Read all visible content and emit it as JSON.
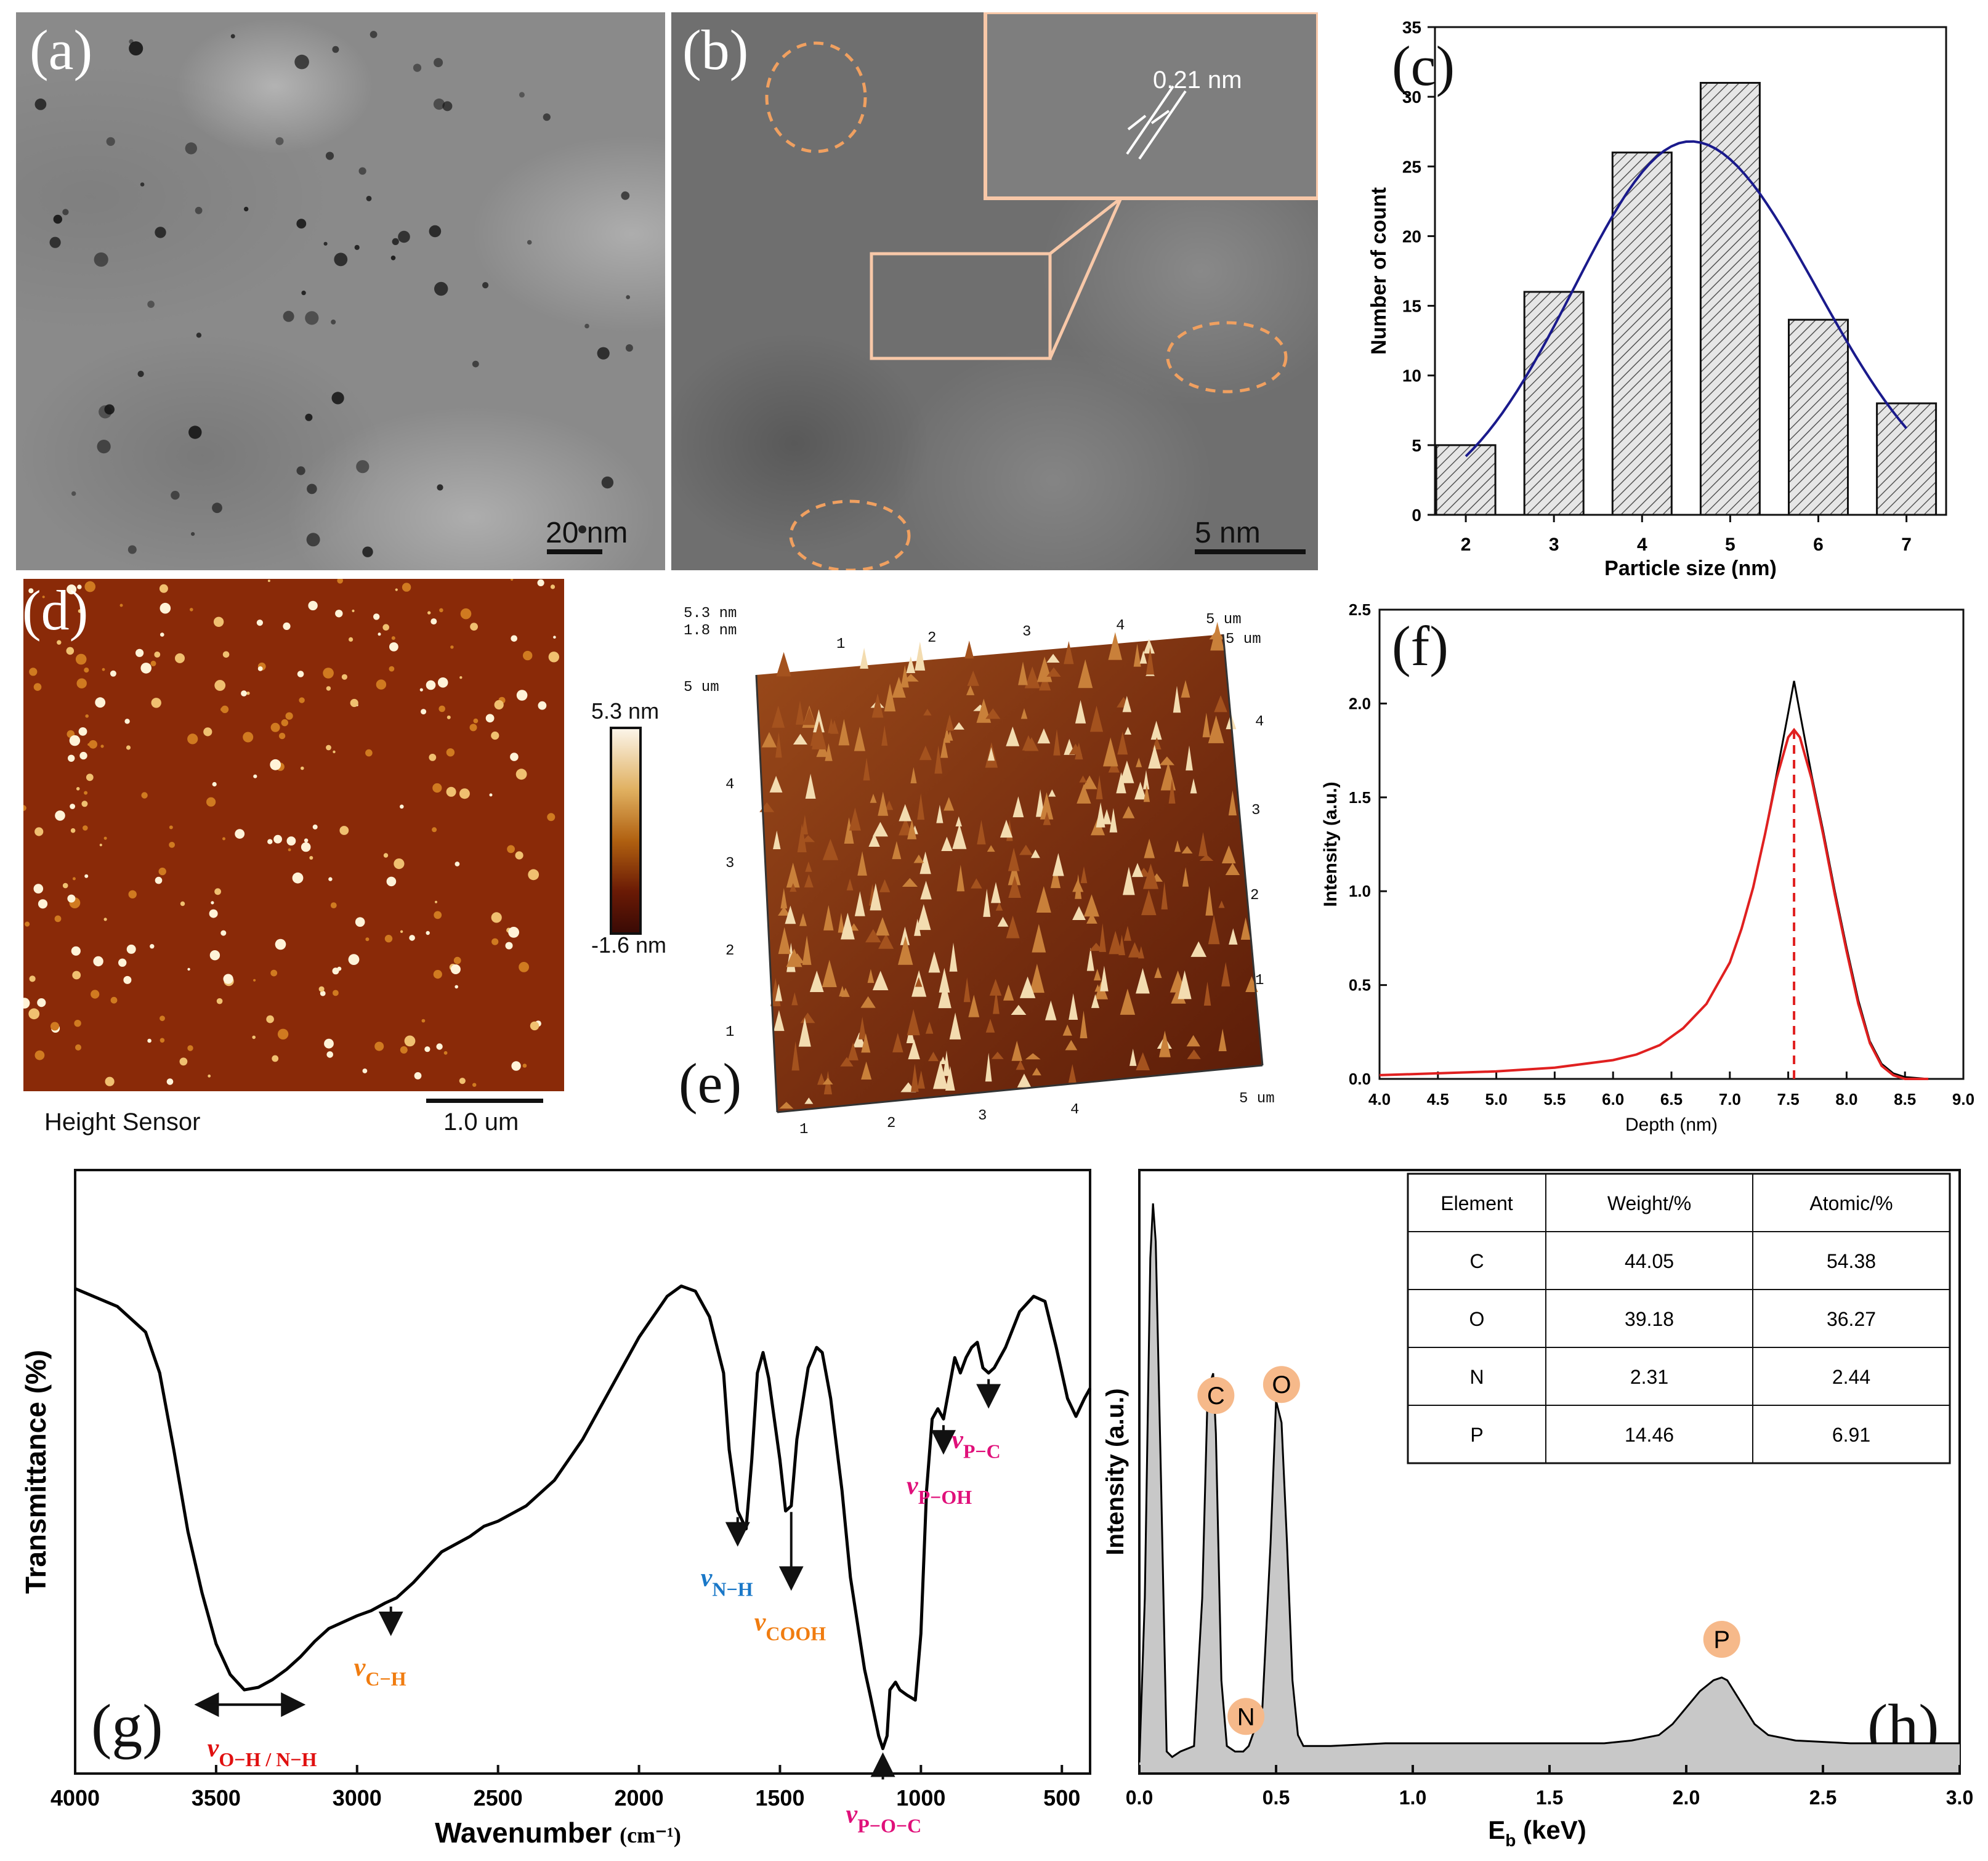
{
  "panels": {
    "a": {
      "label": "(a)",
      "scale_bar": "20 nm"
    },
    "b": {
      "label": "(b)",
      "scale_bar": "5 nm",
      "lattice_spacing": "0.21 nm"
    },
    "c": {
      "label": "(c)"
    },
    "d": {
      "label": "(d)",
      "colorbar_max": "5.3 nm",
      "colorbar_min": "-1.6 nm",
      "caption": "Height Sensor",
      "scale_bar": "1.0 um"
    },
    "e": {
      "label": "(e)",
      "z_max": "5.3 nm",
      "z_mid": "1.8 nm",
      "axis_unit": "5 um",
      "ticks_top": [
        "1",
        "2",
        "3",
        "4",
        "5 um"
      ],
      "ticks_right": [
        "5 um",
        "4",
        "3",
        "2",
        "1"
      ],
      "ticks_left": [
        "5 um",
        "4",
        "3",
        "2",
        "1"
      ],
      "ticks_bottom": [
        "1",
        "2",
        "3",
        "4",
        "5 um"
      ]
    },
    "f": {
      "label": "(f)"
    },
    "g": {
      "label": "(g)"
    },
    "h": {
      "label": "(h)"
    }
  },
  "chart_data": [
    {
      "id": "c",
      "type": "bar",
      "xlabel": "Particle size (nm)",
      "ylabel": "Number of count",
      "categories": [
        "2",
        "3",
        "4",
        "5",
        "6",
        "7"
      ],
      "values": [
        5,
        16,
        26,
        31,
        14,
        8
      ],
      "ylim": [
        0,
        35
      ],
      "yticks": [
        0,
        5,
        10,
        15,
        20,
        25,
        30,
        35
      ],
      "fit_curve": {
        "type": "gaussian",
        "peak_x": 4.55,
        "peak_y": 26.8,
        "x_range": [
          2,
          7
        ],
        "y_at_start": 4.2,
        "y_at_end": 6.2,
        "color": "#1a1a8c"
      },
      "bar_pattern": "hatched-gray"
    },
    {
      "id": "f",
      "type": "line",
      "xlabel": "Depth (nm)",
      "ylabel": "Intensity (a.u.)",
      "xlim": [
        4.0,
        9.0
      ],
      "ylim": [
        0,
        2.5
      ],
      "xticks": [
        "4.0",
        "4.5",
        "5.0",
        "5.5",
        "6.0",
        "6.5",
        "7.0",
        "7.5",
        "8.0",
        "8.5",
        "9.0"
      ],
      "yticks": [
        "0.0",
        "0.5",
        "1.0",
        "1.5",
        "2.0",
        "2.5"
      ],
      "series": [
        {
          "style": "data",
          "color": "#000000",
          "x": [
            4.0,
            4.5,
            5.0,
            5.5,
            6.0,
            6.2,
            6.4,
            6.6,
            6.8,
            7.0,
            7.1,
            7.2,
            7.3,
            7.4,
            7.5,
            7.55,
            7.6,
            7.7,
            7.8,
            7.9,
            8.0,
            8.1,
            8.2,
            8.3,
            8.4,
            8.5,
            8.7
          ],
          "y": [
            0.02,
            0.03,
            0.04,
            0.06,
            0.1,
            0.13,
            0.18,
            0.27,
            0.4,
            0.62,
            0.8,
            1.02,
            1.3,
            1.62,
            1.95,
            2.12,
            1.95,
            1.62,
            1.32,
            1.0,
            0.7,
            0.42,
            0.2,
            0.08,
            0.03,
            0.01,
            0.0
          ]
        },
        {
          "style": "fit",
          "color": "#e02020",
          "x": [
            4.0,
            4.5,
            5.0,
            5.5,
            6.0,
            6.2,
            6.4,
            6.6,
            6.8,
            7.0,
            7.1,
            7.2,
            7.3,
            7.4,
            7.5,
            7.55,
            7.6,
            7.7,
            7.8,
            7.9,
            8.0,
            8.1,
            8.2,
            8.3,
            8.4,
            8.5,
            8.7
          ],
          "y": [
            0.02,
            0.03,
            0.04,
            0.06,
            0.1,
            0.13,
            0.18,
            0.27,
            0.4,
            0.62,
            0.8,
            1.02,
            1.3,
            1.6,
            1.82,
            1.86,
            1.82,
            1.6,
            1.3,
            0.98,
            0.68,
            0.4,
            0.19,
            0.07,
            0.02,
            0.0,
            0.0
          ]
        }
      ],
      "marker_line": {
        "x": 7.55,
        "color": "#e02020",
        "style": "dashed"
      }
    },
    {
      "id": "g",
      "type": "line",
      "xlabel": "Wavenumber",
      "xlabel_unit": "(cm⁻¹)",
      "ylabel": "Transmittance (%)",
      "xlim": [
        4000,
        400
      ],
      "xticks": [
        4000,
        3500,
        3000,
        2500,
        2000,
        1500,
        1000,
        500
      ],
      "y_relative_range": [
        0,
        100
      ],
      "series": [
        {
          "color": "#000000",
          "x": [
            4000,
            3850,
            3750,
            3700,
            3650,
            3600,
            3550,
            3500,
            3450,
            3400,
            3350,
            3300,
            3250,
            3200,
            3150,
            3100,
            3000,
            2950,
            2900,
            2880,
            2860,
            2800,
            2700,
            2600,
            2550,
            2500,
            2400,
            2300,
            2200,
            2100,
            2000,
            1900,
            1850,
            1800,
            1750,
            1700,
            1680,
            1650,
            1620,
            1600,
            1580,
            1560,
            1540,
            1500,
            1480,
            1460,
            1440,
            1400,
            1370,
            1350,
            1320,
            1280,
            1250,
            1200,
            1180,
            1150,
            1135,
            1120,
            1110,
            1090,
            1075,
            1050,
            1020,
            1000,
            980,
            960,
            940,
            920,
            900,
            880,
            860,
            840,
            820,
            800,
            780,
            760,
            740,
            700,
            650,
            600,
            560,
            520,
            480,
            450,
            420,
            400
          ],
          "y": [
            91.5,
            88,
            83,
            75,
            60,
            44,
            32,
            22,
            16,
            13,
            13.5,
            15,
            17,
            19.5,
            22.5,
            25,
            27.5,
            28.5,
            30,
            30.5,
            31,
            34,
            40,
            43,
            45,
            46,
            49,
            54,
            62,
            72,
            82,
            90,
            92,
            91,
            86,
            75,
            60,
            48,
            44.5,
            58,
            75,
            79,
            74,
            58,
            48,
            49,
            62,
            76,
            80,
            79,
            70,
            52,
            35,
            17,
            12,
            4,
            1.5,
            4,
            13,
            14.5,
            13,
            12,
            11,
            24,
            52,
            66,
            68,
            66,
            72,
            78,
            75,
            78,
            80,
            81,
            76,
            75,
            76,
            80,
            87,
            90,
            89,
            80,
            70,
            66.5,
            70,
            72
          ]
        }
      ],
      "annotations": [
        {
          "text": "v",
          "sub": "O−H / N−H",
          "x": 3400,
          "color": "#e01010",
          "kind": "range-arrow"
        },
        {
          "text": "v",
          "sub": "C−H",
          "x": 2880,
          "color": "#f07c10",
          "kind": "down-arrow"
        },
        {
          "text": "v",
          "sub": "N−H",
          "x": 1650,
          "color": "#1a78c8",
          "kind": "down-arrow"
        },
        {
          "text": "v",
          "sub": "COOH",
          "x": 1460,
          "color": "#f07c10",
          "kind": "down-arrow"
        },
        {
          "text": "v",
          "sub": "P−O−C",
          "x": 1135,
          "color": "#e0107a",
          "kind": "up-arrow"
        },
        {
          "text": "v",
          "sub": "P−OH",
          "x": 920,
          "color": "#e0107a",
          "kind": "down-arrow"
        },
        {
          "text": "v",
          "sub": "P−C",
          "x": 760,
          "color": "#e0107a",
          "kind": "down-arrow"
        }
      ]
    },
    {
      "id": "h",
      "type": "area",
      "xlabel": "E",
      "xlabel_sub": "b",
      "xlabel_unit": "(keV)",
      "ylabel": "Intensity (a.u.)",
      "xlim": [
        0.0,
        3.0
      ],
      "xticks": [
        "0.0",
        "0.5",
        "1.0",
        "1.5",
        "2.0",
        "2.5",
        "3.0"
      ],
      "y_relative_range": [
        0,
        100
      ],
      "series": [
        {
          "color": "#000000",
          "fill": "#c8c8c8",
          "x": [
            0.0,
            0.02,
            0.04,
            0.05,
            0.06,
            0.08,
            0.1,
            0.12,
            0.15,
            0.2,
            0.23,
            0.25,
            0.27,
            0.28,
            0.3,
            0.32,
            0.35,
            0.38,
            0.4,
            0.45,
            0.48,
            0.5,
            0.52,
            0.54,
            0.56,
            0.58,
            0.6,
            0.7,
            0.9,
            1.1,
            1.3,
            1.5,
            1.7,
            1.8,
            1.9,
            1.95,
            2.0,
            2.05,
            2.1,
            2.13,
            2.15,
            2.2,
            2.25,
            2.3,
            2.4,
            2.6,
            2.8,
            3.0
          ],
          "y": [
            0,
            30,
            92,
            102,
            95,
            50,
            2,
            1,
            2,
            3,
            30,
            68,
            71,
            60,
            15,
            3,
            2,
            2,
            3,
            10,
            40,
            66,
            62,
            40,
            15,
            5,
            3,
            3,
            3.5,
            3.5,
            3.5,
            3.5,
            3.5,
            4,
            5,
            7,
            10,
            13,
            15,
            15.5,
            15,
            11,
            7,
            5,
            4,
            3.5,
            3.5,
            3.5
          ]
        }
      ],
      "peak_labels": [
        {
          "text": "C",
          "x": 0.28
        },
        {
          "text": "O",
          "x": 0.52
        },
        {
          "text": "N",
          "x": 0.39
        },
        {
          "text": "P",
          "x": 2.13
        }
      ],
      "table": {
        "headers": [
          "Element",
          "Weight/%",
          "Atomic/%"
        ],
        "rows": [
          [
            "C",
            "44.05",
            "54.38"
          ],
          [
            "O",
            "39.18",
            "36.27"
          ],
          [
            "N",
            "2.31",
            "2.44"
          ],
          [
            "P",
            "14.46",
            "6.91"
          ]
        ]
      }
    }
  ]
}
